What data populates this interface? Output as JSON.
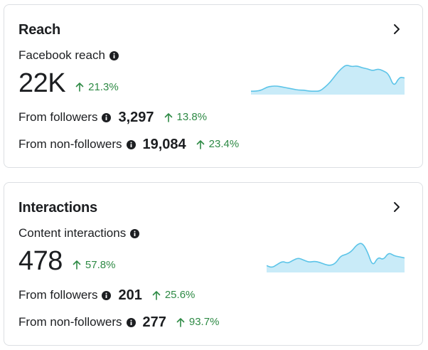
{
  "reach": {
    "title": "Reach",
    "metric_label": "Facebook reach",
    "value": "22K",
    "change": "21.3%",
    "followers_label": "From followers",
    "followers_value": "3,297",
    "followers_change": "13.8%",
    "nonfollowers_label": "From non-followers",
    "nonfollowers_value": "19,084",
    "nonfollowers_change": "23.4%",
    "sparkline": [
      2,
      2,
      3,
      6,
      7,
      7,
      6,
      5,
      4,
      3,
      3,
      2,
      2,
      2,
      6,
      11,
      18,
      24,
      28,
      26,
      27,
      25,
      24,
      22,
      24,
      22,
      19,
      6,
      16,
      15
    ]
  },
  "interactions": {
    "title": "Interactions",
    "metric_label": "Content interactions",
    "value": "478",
    "change": "57.8%",
    "followers_label": "From followers",
    "followers_value": "201",
    "followers_change": "25.6%",
    "nonfollowers_label": "From non-followers",
    "nonfollowers_value": "277",
    "nonfollowers_change": "93.7%",
    "sparkline": [
      5,
      3,
      6,
      9,
      7,
      10,
      12,
      10,
      8,
      9,
      8,
      6,
      5,
      7,
      14,
      15,
      18,
      24,
      26,
      18,
      4,
      13,
      10,
      17,
      14,
      13,
      12
    ]
  },
  "colors": {
    "spark_stroke": "#5cc4e8",
    "spark_fill": "#c9ebf8",
    "positive": "#2e8a45"
  },
  "icons": [
    "chevron-right-icon",
    "info-icon",
    "up-arrow-icon"
  ]
}
